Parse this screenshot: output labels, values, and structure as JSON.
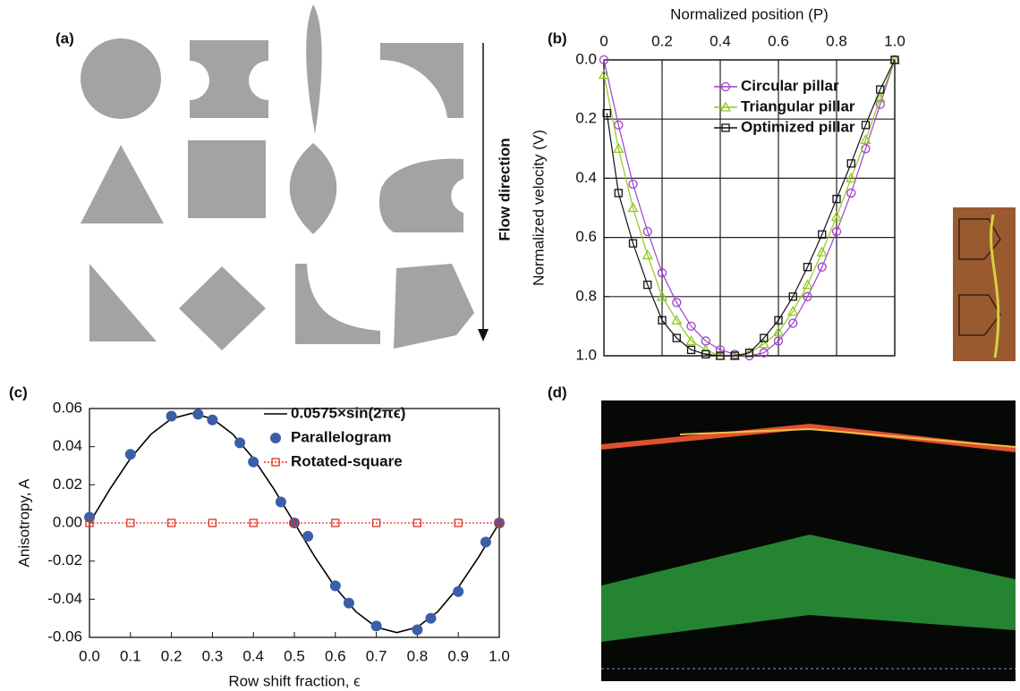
{
  "panels": {
    "a": {
      "label": "(a)",
      "annotation": "Flow direction"
    },
    "b": {
      "label": "(b)"
    },
    "c": {
      "label": "(c)"
    },
    "d": {
      "label": "(d)"
    }
  },
  "chart_data": [
    {
      "type": "line",
      "x_label": "Normalized position (P)",
      "y_label": "Normalized velocity (V)",
      "xaxis_position": "top",
      "y_inverted": true,
      "grid": true,
      "xlim": [
        0,
        1
      ],
      "xticks": [
        0,
        0.2,
        0.4,
        0.6,
        0.8,
        {
          "value": 1,
          "label": "1.0"
        }
      ],
      "ylim": [
        0,
        1
      ],
      "yticks": [
        {
          "value": 0,
          "label": "0.0"
        },
        0.2,
        0.4,
        0.6,
        0.8,
        {
          "value": 1,
          "label": "1.0"
        }
      ],
      "series": [
        {
          "name": "Circular pillar",
          "color": "#a040c8",
          "marker": "circle",
          "line_style": "solid",
          "x": [
            0,
            0.05,
            0.1,
            0.15,
            0.2,
            0.25,
            0.3,
            0.35,
            0.4,
            0.45,
            0.5,
            0.55,
            0.6,
            0.65,
            0.7,
            0.75,
            0.8,
            0.85,
            0.9,
            0.95,
            1
          ],
          "values": [
            0,
            0.22,
            0.42,
            0.58,
            0.72,
            0.82,
            0.9,
            0.95,
            0.98,
            0.995,
            1,
            0.99,
            0.95,
            0.89,
            0.8,
            0.7,
            0.58,
            0.45,
            0.3,
            0.15,
            0
          ]
        },
        {
          "name": "Triangular pillar",
          "color": "#90c820",
          "marker": "triangle",
          "line_style": "solid",
          "x": [
            0,
            0.05,
            0.1,
            0.15,
            0.2,
            0.25,
            0.3,
            0.35,
            0.4,
            0.45,
            0.5,
            0.55,
            0.6,
            0.65,
            0.7,
            0.75,
            0.8,
            0.85,
            0.9,
            0.95,
            1
          ],
          "values": [
            0.05,
            0.3,
            0.5,
            0.66,
            0.8,
            0.88,
            0.95,
            0.98,
            1,
            1,
            0.99,
            0.96,
            0.92,
            0.85,
            0.76,
            0.65,
            0.53,
            0.4,
            0.27,
            0.13,
            0
          ]
        },
        {
          "name": "Optimized pillar",
          "color": "#111111",
          "marker": "square",
          "line_style": "solid",
          "x": [
            0.01,
            0.05,
            0.1,
            0.15,
            0.2,
            0.25,
            0.3,
            0.35,
            0.4,
            0.45,
            0.5,
            0.55,
            0.6,
            0.65,
            0.7,
            0.75,
            0.8,
            0.85,
            0.9,
            0.95,
            1
          ],
          "values": [
            0.18,
            0.45,
            0.62,
            0.76,
            0.88,
            0.94,
            0.98,
            0.995,
            1,
            1,
            0.99,
            0.94,
            0.88,
            0.8,
            0.7,
            0.59,
            0.47,
            0.35,
            0.22,
            0.1,
            0
          ]
        }
      ]
    },
    {
      "type": "line",
      "x_label": "Row shift fraction, ϵ",
      "y_label": "Anisotropy, A",
      "xaxis_position": "bottom",
      "y_inverted": false,
      "grid": false,
      "xlim": [
        0,
        1
      ],
      "xticks": [
        {
          "value": 0,
          "label": "0.0"
        },
        0.1,
        0.2,
        0.3,
        0.4,
        0.5,
        0.6,
        0.7,
        0.8,
        0.9,
        {
          "value": 1,
          "label": "1.0"
        }
      ],
      "ylim": [
        -0.06,
        0.06
      ],
      "yticks": [
        -0.06,
        -0.04,
        -0.02,
        {
          "value": 0,
          "label": "0.00"
        },
        0.02,
        0.04,
        0.06
      ],
      "series": [
        {
          "name": "0.0575×sin(2πϵ)",
          "color": "#000000",
          "marker": "none",
          "line_style": "solid",
          "x": [
            0,
            0.05,
            0.1,
            0.15,
            0.2,
            0.25,
            0.3,
            0.35,
            0.4,
            0.45,
            0.5,
            0.55,
            0.6,
            0.65,
            0.7,
            0.75,
            0.8,
            0.85,
            0.9,
            0.95,
            1
          ],
          "values": [
            0,
            0.0178,
            0.0338,
            0.0465,
            0.0547,
            0.0575,
            0.0547,
            0.0465,
            0.0338,
            0.0178,
            0,
            -0.0178,
            -0.0338,
            -0.0465,
            -0.0547,
            -0.0575,
            -0.0547,
            -0.0465,
            -0.0338,
            -0.0178,
            0
          ]
        },
        {
          "name": "Parallelogram",
          "color": "#3a5fa8",
          "marker": "filled-circle",
          "line_style": "none",
          "x": [
            0,
            0.1,
            0.2,
            0.265,
            0.3,
            0.367,
            0.4,
            0.467,
            0.5,
            0.533,
            0.6,
            0.633,
            0.7,
            0.8,
            0.833,
            0.9,
            0.967,
            1
          ],
          "values": [
            0.003,
            0.036,
            0.056,
            0.057,
            0.054,
            0.042,
            0.032,
            0.011,
            0,
            -0.007,
            -0.033,
            -0.042,
            -0.054,
            -0.056,
            -0.05,
            -0.036,
            -0.01,
            0
          ]
        },
        {
          "name": "Rotated-square",
          "color": "#e03020",
          "marker": "square",
          "line_style": "dotted",
          "x": [
            0,
            0.1,
            0.2,
            0.3,
            0.4,
            0.5,
            0.6,
            0.7,
            0.8,
            0.9,
            1
          ],
          "values": [
            0,
            0,
            0,
            0,
            0,
            0,
            0,
            0,
            0,
            0,
            0
          ]
        }
      ]
    }
  ]
}
